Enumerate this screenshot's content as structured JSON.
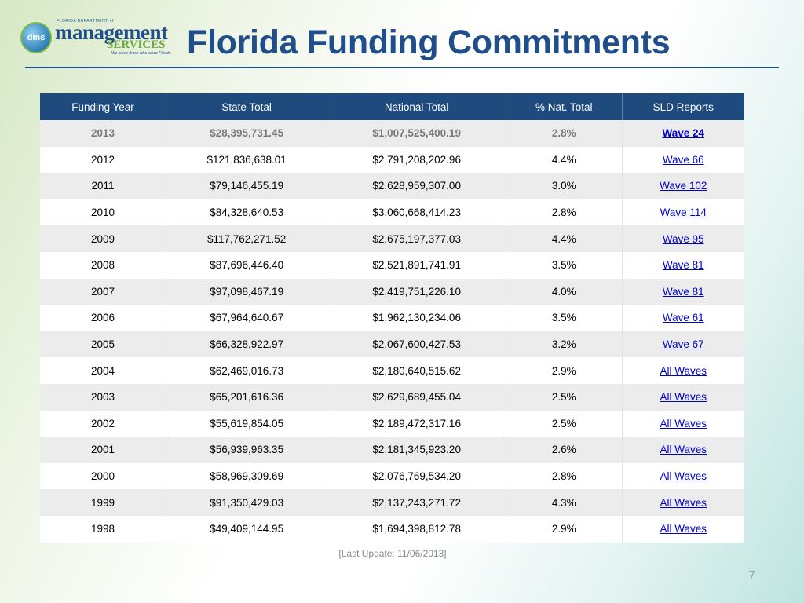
{
  "logo": {
    "initials": "dms",
    "dept_text": "FLORIDA DEPARTMENT of",
    "word1": "management",
    "word2": "SERVICES",
    "tagline": "We serve those who serve Florida"
  },
  "title": "Florida Funding Commitments",
  "table": {
    "headers": [
      "Funding Year",
      "State Total",
      "National Total",
      "% Nat. Total",
      "SLD Reports"
    ],
    "rows": [
      {
        "year": "2013",
        "state": "$28,395,731.45",
        "national": "$1,007,525,400.19",
        "pct": "2.8%",
        "report": "Wave 24"
      },
      {
        "year": "2012",
        "state": "$121,836,638.01",
        "national": "$2,791,208,202.96",
        "pct": "4.4%",
        "report": "Wave 66"
      },
      {
        "year": "2011",
        "state": "$79,146,455.19",
        "national": "$2,628,959,307.00",
        "pct": "3.0%",
        "report": "Wave 102"
      },
      {
        "year": "2010",
        "state": "$84,328,640.53",
        "national": "$3,060,668,414.23",
        "pct": "2.8%",
        "report": "Wave 114"
      },
      {
        "year": "2009",
        "state": "$117,762,271.52",
        "national": "$2,675,197,377.03",
        "pct": "4.4%",
        "report": "Wave 95"
      },
      {
        "year": "2008",
        "state": "$87,696,446.40",
        "national": "$2,521,891,741.91",
        "pct": "3.5%",
        "report": "Wave 81"
      },
      {
        "year": "2007",
        "state": "$97,098,467.19",
        "national": "$2,419,751,226.10",
        "pct": "4.0%",
        "report": "Wave 81"
      },
      {
        "year": "2006",
        "state": "$67,964,640.67",
        "national": "$1,962,130,234.06",
        "pct": "3.5%",
        "report": "Wave 61"
      },
      {
        "year": "2005",
        "state": "$66,328,922.97",
        "national": "$2,067,600,427.53",
        "pct": "3.2%",
        "report": "Wave 67"
      },
      {
        "year": "2004",
        "state": "$62,469,016.73",
        "national": "$2,180,640,515.62",
        "pct": "2.9%",
        "report": "All Waves"
      },
      {
        "year": "2003",
        "state": "$65,201,616.36",
        "national": "$2,629,689,455.04",
        "pct": "2.5%",
        "report": "All Waves"
      },
      {
        "year": "2002",
        "state": "$55,619,854.05",
        "national": "$2,189,472,317.16",
        "pct": "2.5%",
        "report": "All Waves"
      },
      {
        "year": "2001",
        "state": "$56,939,963.35",
        "national": "$2,181,345,923.20",
        "pct": "2.6%",
        "report": "All Waves"
      },
      {
        "year": "2000",
        "state": "$58,969,309.69",
        "national": "$2,076,769,534.20",
        "pct": "2.8%",
        "report": "All Waves"
      },
      {
        "year": "1999",
        "state": "$91,350,429.03",
        "national": "$2,137,243,271.72",
        "pct": "4.3%",
        "report": "All Waves"
      },
      {
        "year": "1998",
        "state": "$49,409,144.95",
        "national": "$1,694,398,812.78",
        "pct": "2.9%",
        "report": "All Waves"
      }
    ]
  },
  "last_update": "[Last Update: 11/06/2013]",
  "page_number": "7",
  "colors": {
    "header_bg": "#1f4a7d",
    "title": "#1f4e8a",
    "link": "#0000cc",
    "row_alt": "#ececec"
  }
}
